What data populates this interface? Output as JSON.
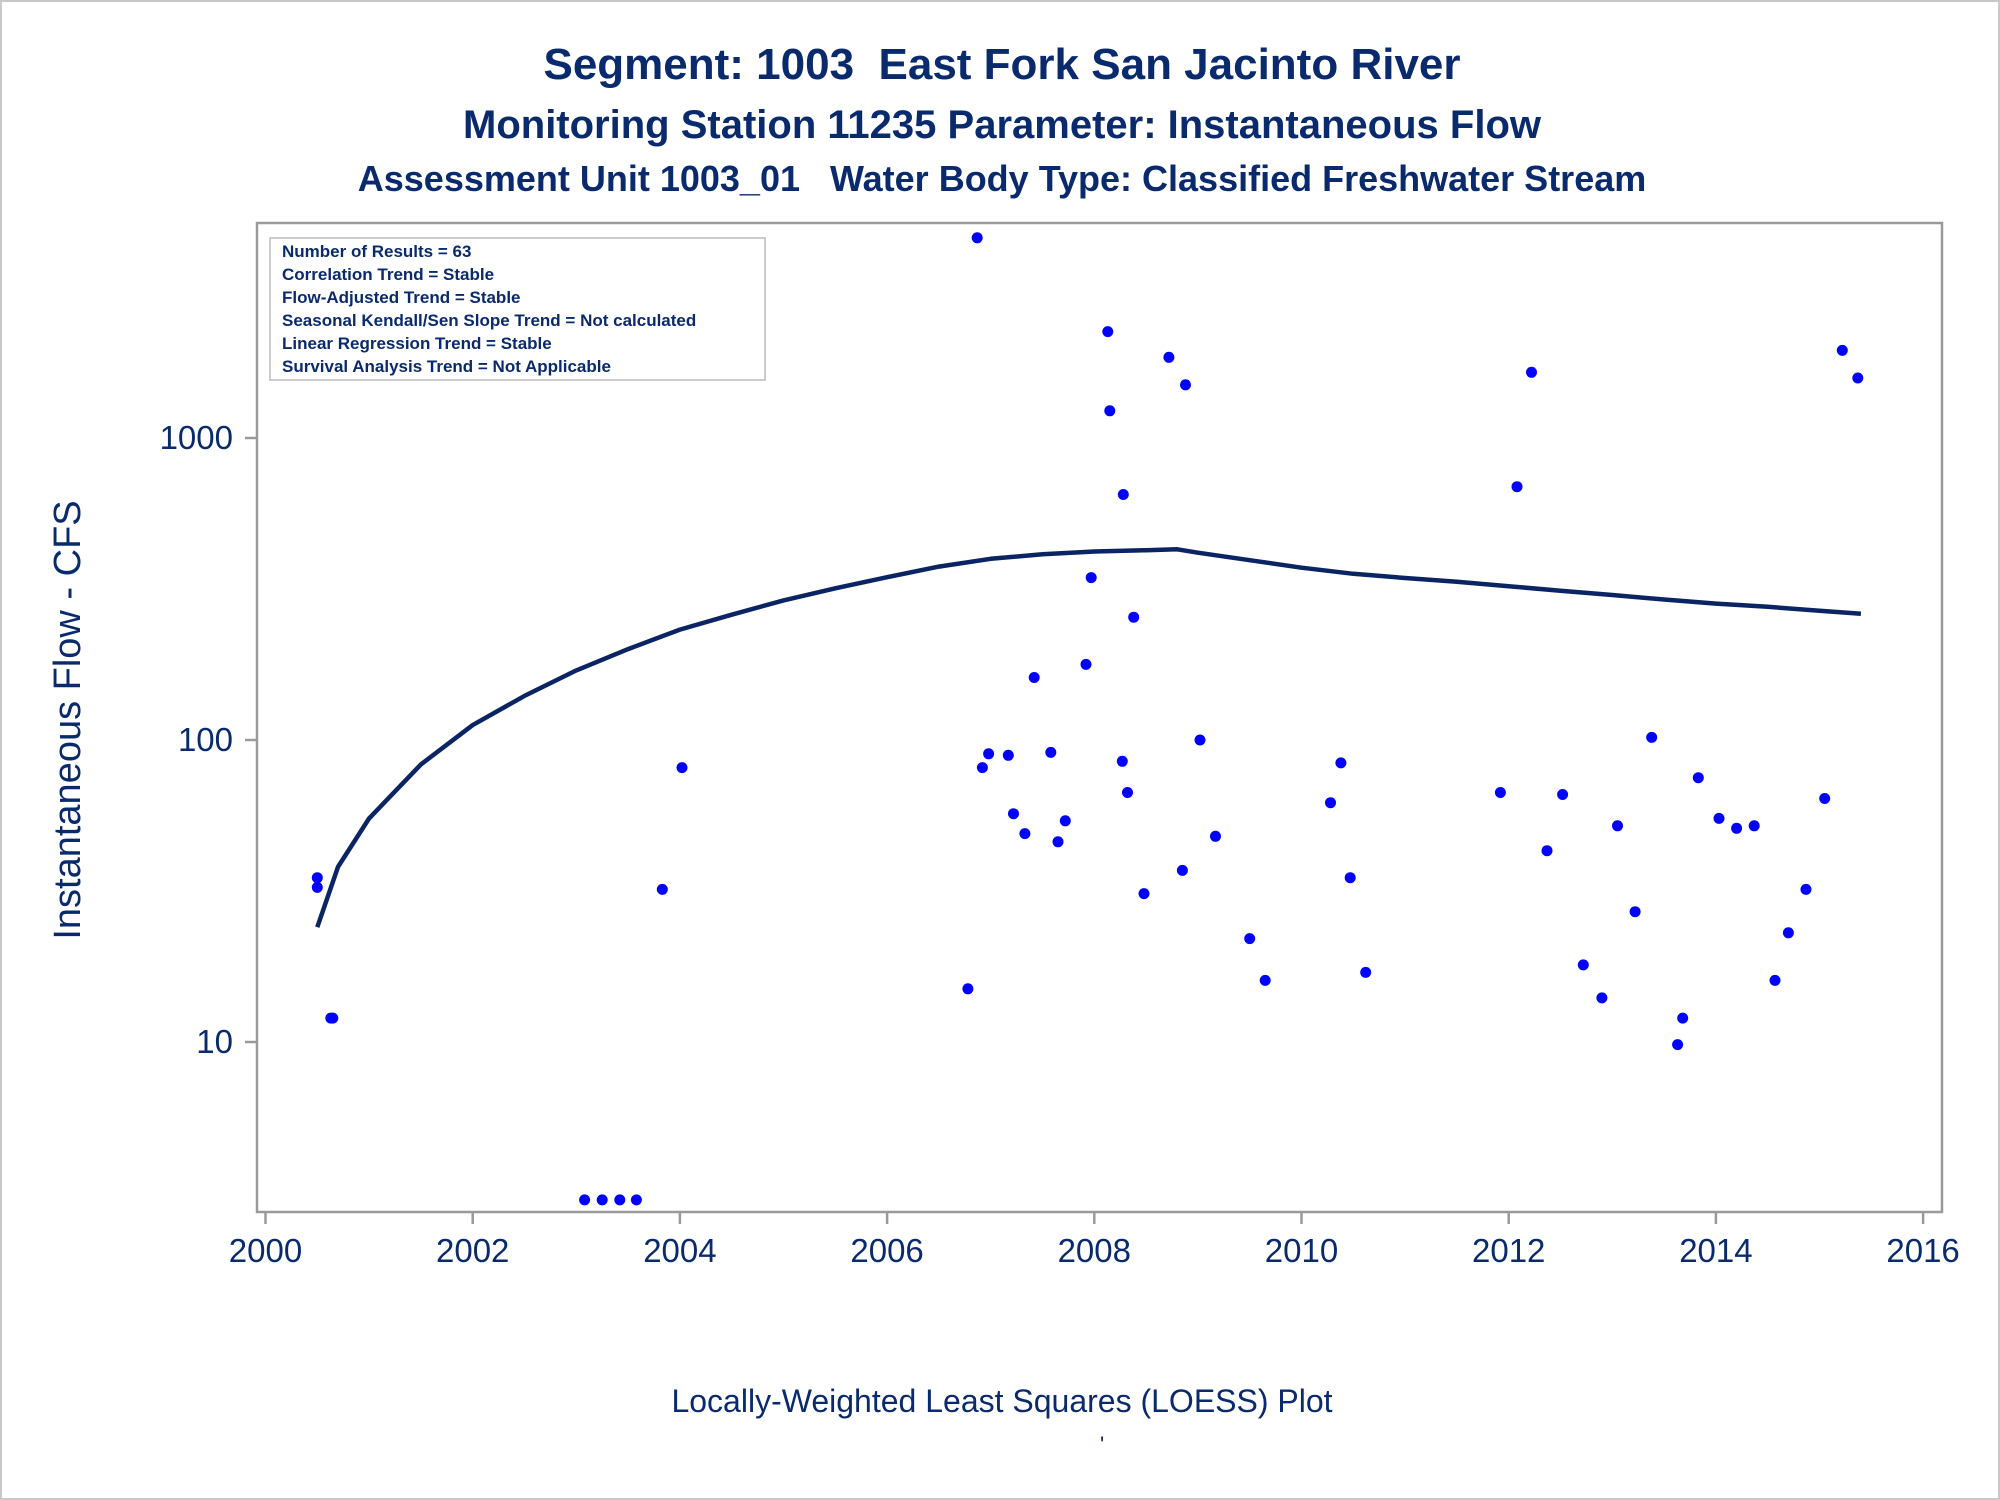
{
  "titles": {
    "line1": "Segment: 1003  East Fork San Jacinto River",
    "line2": "Monitoring Station 11235 Parameter: Instantaneous Flow",
    "line3": "Assessment Unit 1003_01   Water Body Type: Classified Freshwater Stream"
  },
  "footnote": "Locally-Weighted Least Squares (LOESS) Plot",
  "tick_mark": "'",
  "colors": {
    "text": "#0a2a6e",
    "points": "#0000ff",
    "loess_line": "#0a2464",
    "frame": "#9a9a9a",
    "stats_border": "#cccccc"
  },
  "stats_box": [
    "Number of Results = 63",
    "Correlation Trend = Stable",
    "Flow-Adjusted Trend = Stable",
    "Seasonal Kendall/Sen Slope Trend = Not calculated",
    "Linear Regression Trend = Stable",
    "Survival Analysis Trend = Not Applicable"
  ],
  "chart_data": {
    "type": "scatter",
    "title": "Segment: 1003  East Fork San Jacinto River",
    "ylabel": "Instantaneous Flow - CFS",
    "xlabel": "",
    "xlim": [
      2000,
      2016
    ],
    "ylim": [
      3,
      5200
    ],
    "y_scale": "log",
    "x_ticks": [
      2000,
      2002,
      2004,
      2006,
      2008,
      2010,
      2012,
      2014,
      2016
    ],
    "y_ticks": [
      10,
      100,
      1000
    ],
    "grid": false,
    "legend": "none",
    "series": [
      {
        "kind": "scatter",
        "x": [
          2000.5,
          2000.5,
          2000.63,
          2000.65,
          2003.08,
          2003.25,
          2003.42,
          2003.58,
          2003.83,
          2004.02,
          2006.78,
          2006.87,
          2006.92,
          2006.98,
          2007.17,
          2007.22,
          2007.33,
          2007.42,
          2007.58,
          2007.65,
          2007.72,
          2007.92,
          2007.97,
          2008.13,
          2008.15,
          2008.27,
          2008.28,
          2008.32,
          2008.38,
          2008.48,
          2008.72,
          2008.85,
          2008.88,
          2009.02,
          2009.17,
          2009.5,
          2009.65,
          2010.28,
          2010.38,
          2010.47,
          2010.62,
          2011.92,
          2012.08,
          2012.22,
          2012.37,
          2012.52,
          2012.72,
          2012.9,
          2013.05,
          2013.22,
          2013.38,
          2013.63,
          2013.68,
          2013.83,
          2014.03,
          2014.2,
          2014.37,
          2014.57,
          2014.7,
          2014.87,
          2015.05,
          2015.22,
          2015.37
        ],
        "y": [
          35,
          32.5,
          12,
          12,
          3,
          3,
          3,
          3,
          32,
          81,
          15,
          4600,
          81,
          90,
          89,
          57,
          49,
          161,
          91,
          46,
          54,
          178,
          345,
          2250,
          1230,
          85,
          650,
          67,
          255,
          31,
          1850,
          37,
          1500,
          100,
          48,
          22,
          16,
          62,
          84,
          35,
          17,
          67,
          690,
          1650,
          43,
          66,
          18,
          14,
          52,
          27,
          102,
          9.8,
          12,
          75,
          55,
          51,
          52,
          16,
          23,
          32,
          64,
          1950,
          1580
        ]
      },
      {
        "kind": "line",
        "name": "LOESS",
        "x": [
          2000.5,
          2000.7,
          2001,
          2001.5,
          2002,
          2002.5,
          2003,
          2003.5,
          2004,
          2004.5,
          2005,
          2005.5,
          2006,
          2006.5,
          2007,
          2007.5,
          2008,
          2008.5,
          2008.8,
          2009,
          2009.5,
          2010,
          2010.5,
          2011,
          2011.5,
          2012,
          2012.5,
          2013,
          2013.5,
          2014,
          2014.5,
          2015,
          2015.4
        ],
        "y": [
          24,
          38,
          55,
          83,
          112,
          140,
          170,
          200,
          232,
          260,
          290,
          318,
          346,
          375,
          398,
          412,
          421,
          425,
          428,
          417,
          394,
          372,
          355,
          344,
          334,
          323,
          312,
          302,
          292,
          283,
          276,
          268,
          262
        ]
      }
    ]
  }
}
